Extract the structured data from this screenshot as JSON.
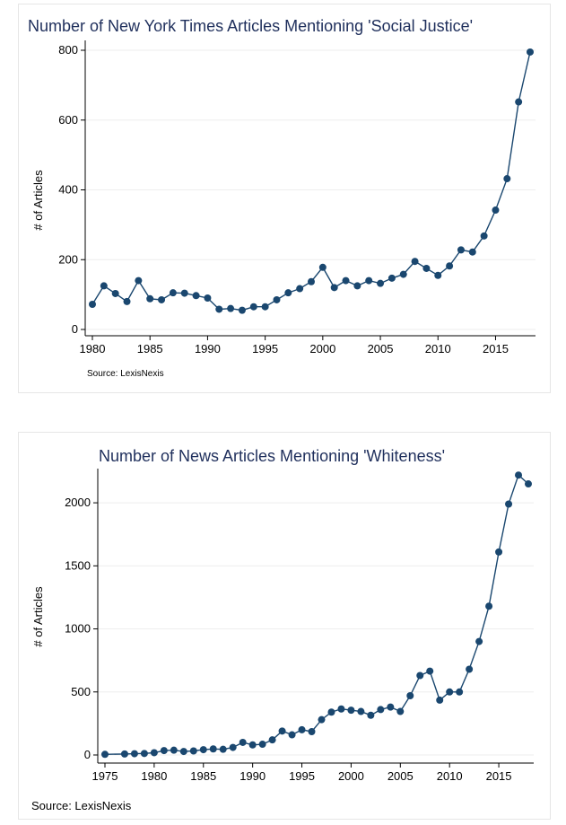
{
  "chart_data": [
    {
      "type": "line",
      "title": "Number of New York Times Articles Mentioning 'Social Justice'",
      "xlabel": "",
      "ylabel": "# of Articles",
      "source": "Source: LexisNexis",
      "xlim": [
        1980,
        2018
      ],
      "ylim": [
        0,
        800
      ],
      "xticks": [
        1980,
        1985,
        1990,
        1995,
        2000,
        2005,
        2010,
        2015
      ],
      "yticks": [
        0,
        200,
        400,
        600,
        800
      ],
      "x": [
        1980,
        1981,
        1982,
        1983,
        1984,
        1985,
        1986,
        1987,
        1988,
        1989,
        1990,
        1991,
        1992,
        1993,
        1994,
        1995,
        1996,
        1997,
        1998,
        1999,
        2000,
        2001,
        2002,
        2003,
        2004,
        2005,
        2006,
        2007,
        2008,
        2009,
        2010,
        2011,
        2012,
        2013,
        2014,
        2015,
        2016,
        2017,
        2018
      ],
      "values": [
        72,
        125,
        103,
        80,
        140,
        88,
        85,
        105,
        104,
        97,
        90,
        58,
        60,
        55,
        65,
        65,
        85,
        105,
        117,
        137,
        178,
        120,
        140,
        125,
        140,
        132,
        147,
        158,
        195,
        175,
        155,
        182,
        228,
        222,
        268,
        342,
        432,
        652,
        795
      ]
    },
    {
      "type": "line",
      "title": "Number of News Articles Mentioning 'Whiteness'",
      "xlabel": "",
      "ylabel": "# of Articles",
      "source": "Source: LexisNexis",
      "xlim": [
        1975,
        2018
      ],
      "ylim": [
        0,
        2200
      ],
      "xticks": [
        1975,
        1980,
        1985,
        1990,
        1995,
        2000,
        2005,
        2010,
        2015
      ],
      "yticks": [
        0,
        500,
        1000,
        1500,
        2000
      ],
      "x": [
        1975,
        1977,
        1978,
        1979,
        1980,
        1981,
        1982,
        1983,
        1984,
        1985,
        1986,
        1987,
        1988,
        1989,
        1990,
        1991,
        1992,
        1993,
        1994,
        1995,
        1996,
        1997,
        1998,
        1999,
        2000,
        2001,
        2002,
        2003,
        2004,
        2005,
        2006,
        2007,
        2008,
        2009,
        2010,
        2011,
        2012,
        2013,
        2014,
        2015,
        2016,
        2017,
        2018
      ],
      "values": [
        5,
        8,
        10,
        12,
        18,
        35,
        38,
        28,
        32,
        42,
        48,
        45,
        60,
        100,
        80,
        85,
        120,
        190,
        160,
        200,
        185,
        280,
        340,
        365,
        355,
        345,
        315,
        360,
        380,
        345,
        470,
        630,
        665,
        435,
        500,
        500,
        680,
        900,
        1180,
        1610,
        1990,
        2220,
        2150
      ]
    }
  ]
}
